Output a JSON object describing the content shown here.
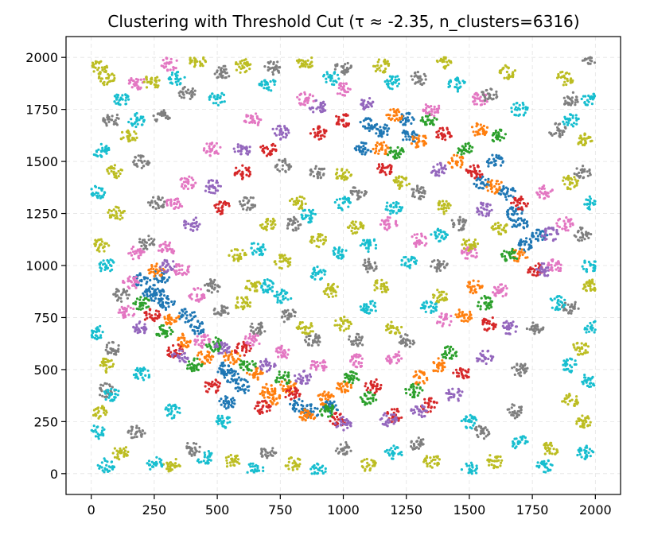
{
  "chart_data": {
    "type": "scatter",
    "title": "Clustering with Threshold Cut (τ ≈ -2.35, n_clusters=6316)",
    "xlabel": "",
    "ylabel": "",
    "xlim": [
      -100,
      2100
    ],
    "ylim": [
      -100,
      2100
    ],
    "x_ticks": [
      0,
      250,
      500,
      750,
      1000,
      1250,
      1500,
      1750,
      2000
    ],
    "y_ticks": [
      0,
      250,
      500,
      750,
      1000,
      1250,
      1500,
      1750,
      2000
    ],
    "x_tick_labels": [
      "0",
      "250",
      "500",
      "750",
      "1000",
      "1250",
      "1500",
      "1750",
      "2000"
    ],
    "y_tick_labels": [
      "0",
      "250",
      "500",
      "750",
      "1000",
      "1250",
      "1500",
      "1750",
      "2000"
    ],
    "grid": true,
    "marker_size": 1.6,
    "palette": [
      "#1f77b4",
      "#ff7f0e",
      "#2ca02c",
      "#d62728",
      "#9467bd",
      "#e377c2",
      "#7f7f7f",
      "#bcbd22",
      "#17becf"
    ],
    "series": [
      {
        "color": "#1f77b4",
        "points": [
          [
            230,
            880
          ],
          [
            260,
            860
          ],
          [
            300,
            820
          ],
          [
            200,
            930
          ],
          [
            280,
            950
          ],
          [
            520,
            500
          ],
          [
            560,
            470
          ],
          [
            600,
            420
          ],
          [
            540,
            340
          ],
          [
            820,
            330
          ],
          [
            870,
            300
          ],
          [
            950,
            320
          ],
          [
            1100,
            1680
          ],
          [
            1150,
            1650
          ],
          [
            1260,
            1620
          ],
          [
            1600,
            1500
          ],
          [
            1650,
            1350
          ],
          [
            1700,
            1200
          ],
          [
            1720,
            1100
          ],
          [
            1780,
            1150
          ],
          [
            1680,
            1250
          ],
          [
            1550,
            1400
          ],
          [
            1250,
            1700
          ],
          [
            1080,
            1560
          ],
          [
            420,
            700
          ],
          [
            380,
            760
          ]
        ]
      },
      {
        "color": "#ff7f0e",
        "points": [
          [
            320,
            740
          ],
          [
            370,
            640
          ],
          [
            450,
            560
          ],
          [
            650,
            480
          ],
          [
            700,
            400
          ],
          [
            780,
            420
          ],
          [
            860,
            280
          ],
          [
            1000,
            420
          ],
          [
            1150,
            1560
          ],
          [
            1300,
            1600
          ],
          [
            1450,
            1500
          ],
          [
            1540,
            1650
          ],
          [
            1600,
            1380
          ],
          [
            1520,
            900
          ],
          [
            1480,
            760
          ],
          [
            1380,
            520
          ],
          [
            1300,
            460
          ],
          [
            560,
            560
          ],
          [
            720,
            360
          ],
          [
            930,
            360
          ],
          [
            1200,
            1720
          ],
          [
            1700,
            1050
          ],
          [
            260,
            980
          ]
        ]
      },
      {
        "color": "#2ca02c",
        "points": [
          [
            290,
            680
          ],
          [
            410,
            520
          ],
          [
            620,
            520
          ],
          [
            760,
            460
          ],
          [
            940,
            300
          ],
          [
            1030,
            460
          ],
          [
            1210,
            1540
          ],
          [
            1340,
            1700
          ],
          [
            1480,
            1560
          ],
          [
            1620,
            1620
          ],
          [
            1660,
            1050
          ],
          [
            1560,
            820
          ],
          [
            1420,
            580
          ],
          [
            1280,
            400
          ],
          [
            490,
            620
          ],
          [
            200,
            820
          ],
          [
            1100,
            360
          ]
        ]
      },
      {
        "color": "#d62728",
        "points": [
          [
            240,
            760
          ],
          [
            330,
            590
          ],
          [
            480,
            420
          ],
          [
            600,
            600
          ],
          [
            680,
            320
          ],
          [
            800,
            380
          ],
          [
            980,
            260
          ],
          [
            1120,
            420
          ],
          [
            1170,
            1470
          ],
          [
            1400,
            1630
          ],
          [
            1520,
            1450
          ],
          [
            1700,
            1300
          ],
          [
            1760,
            980
          ],
          [
            1580,
            720
          ],
          [
            1470,
            480
          ],
          [
            1340,
            330
          ],
          [
            600,
            1450
          ],
          [
            520,
            1280
          ],
          [
            700,
            1560
          ],
          [
            900,
            1640
          ],
          [
            1000,
            1700
          ],
          [
            1200,
            280
          ]
        ]
      },
      {
        "color": "#9467bd",
        "points": [
          [
            200,
            700
          ],
          [
            350,
            560
          ],
          [
            520,
            600
          ],
          [
            700,
            520
          ],
          [
            840,
            460
          ],
          [
            1000,
            240
          ],
          [
            1180,
            260
          ],
          [
            1300,
            300
          ],
          [
            1440,
            380
          ],
          [
            1560,
            560
          ],
          [
            1660,
            700
          ],
          [
            1800,
            980
          ],
          [
            1820,
            1150
          ],
          [
            1560,
            1270
          ],
          [
            1380,
            1460
          ],
          [
            1100,
            1780
          ],
          [
            900,
            1760
          ],
          [
            750,
            1640
          ],
          [
            600,
            1560
          ],
          [
            480,
            1380
          ],
          [
            400,
            1200
          ],
          [
            300,
            1000
          ]
        ]
      },
      {
        "color": "#e377c2",
        "points": [
          [
            160,
            920
          ],
          [
            140,
            780
          ],
          [
            180,
            1060
          ],
          [
            300,
            1080
          ],
          [
            360,
            980
          ],
          [
            420,
            860
          ],
          [
            440,
            640
          ],
          [
            640,
            640
          ],
          [
            760,
            580
          ],
          [
            900,
            520
          ],
          [
            1050,
            540
          ],
          [
            1200,
            560
          ],
          [
            1400,
            740
          ],
          [
            1500,
            1060
          ],
          [
            1620,
            880
          ],
          [
            1840,
            1000
          ],
          [
            1880,
            1200
          ],
          [
            1800,
            1350
          ],
          [
            1350,
            1750
          ],
          [
            1000,
            1850
          ],
          [
            850,
            1800
          ],
          [
            640,
            1700
          ],
          [
            480,
            1560
          ],
          [
            380,
            1400
          ],
          [
            330,
            1300
          ],
          [
            1180,
            1200
          ],
          [
            1300,
            1120
          ],
          [
            180,
            1880
          ],
          [
            310,
            1970
          ],
          [
            1540,
            1800
          ]
        ]
      },
      {
        "color": "#7f7f7f",
        "points": [
          [
            120,
            860
          ],
          [
            220,
            1110
          ],
          [
            480,
            900
          ],
          [
            520,
            780
          ],
          [
            660,
            700
          ],
          [
            780,
            760
          ],
          [
            880,
            640
          ],
          [
            1050,
            640
          ],
          [
            1250,
            640
          ],
          [
            1380,
            1000
          ],
          [
            1460,
            1200
          ],
          [
            1300,
            1350
          ],
          [
            1060,
            1350
          ],
          [
            900,
            1450
          ],
          [
            760,
            1480
          ],
          [
            620,
            1300
          ],
          [
            260,
            1300
          ],
          [
            200,
            1500
          ],
          [
            80,
            1700
          ],
          [
            280,
            1720
          ],
          [
            380,
            1830
          ],
          [
            520,
            1930
          ],
          [
            720,
            1950
          ],
          [
            1000,
            1950
          ],
          [
            1300,
            1900
          ],
          [
            1580,
            1820
          ],
          [
            1850,
            1650
          ],
          [
            1950,
            1450
          ],
          [
            1950,
            1150
          ],
          [
            1900,
            800
          ],
          [
            1760,
            700
          ],
          [
            1700,
            500
          ],
          [
            1680,
            300
          ],
          [
            1550,
            200
          ],
          [
            1300,
            140
          ],
          [
            1000,
            120
          ],
          [
            700,
            100
          ],
          [
            400,
            120
          ],
          [
            180,
            200
          ],
          [
            60,
            400
          ],
          [
            80,
            600
          ],
          [
            1900,
            1800
          ],
          [
            1980,
            2000
          ],
          [
            800,
            1200
          ],
          [
            1100,
            1000
          ]
        ]
      },
      {
        "color": "#bcbd22",
        "points": [
          [
            30,
            300
          ],
          [
            60,
            520
          ],
          [
            40,
            1100
          ],
          [
            100,
            1250
          ],
          [
            90,
            1450
          ],
          [
            150,
            1620
          ],
          [
            60,
            1900
          ],
          [
            240,
            1880
          ],
          [
            420,
            1980
          ],
          [
            600,
            1960
          ],
          [
            850,
            1980
          ],
          [
            1150,
            1960
          ],
          [
            1400,
            1980
          ],
          [
            1650,
            1930
          ],
          [
            1880,
            1900
          ],
          [
            1960,
            1600
          ],
          [
            1900,
            1400
          ],
          [
            1980,
            900
          ],
          [
            1940,
            600
          ],
          [
            1900,
            350
          ],
          [
            1820,
            120
          ],
          [
            1600,
            60
          ],
          [
            1350,
            60
          ],
          [
            1100,
            40
          ],
          [
            800,
            50
          ],
          [
            560,
            60
          ],
          [
            320,
            40
          ],
          [
            120,
            100
          ],
          [
            640,
            900
          ],
          [
            760,
            1020
          ],
          [
            900,
            1120
          ],
          [
            1050,
            1180
          ],
          [
            1150,
            900
          ],
          [
            950,
            880
          ],
          [
            820,
            1300
          ],
          [
            1000,
            1440
          ],
          [
            1230,
            1400
          ],
          [
            1400,
            1280
          ],
          [
            1500,
            1100
          ],
          [
            1380,
            850
          ],
          [
            1200,
            700
          ],
          [
            1000,
            720
          ],
          [
            850,
            700
          ],
          [
            600,
            820
          ],
          [
            580,
            1050
          ],
          [
            700,
            1200
          ],
          [
            1620,
            1180
          ],
          [
            1950,
            250
          ],
          [
            30,
            1950
          ]
        ]
      },
      {
        "color": "#17becf",
        "points": [
          [
            20,
            200
          ],
          [
            80,
            380
          ],
          [
            20,
            680
          ],
          [
            60,
            1000
          ],
          [
            20,
            1350
          ],
          [
            40,
            1550
          ],
          [
            120,
            1800
          ],
          [
            180,
            1700
          ],
          [
            340,
            1900
          ],
          [
            500,
            1800
          ],
          [
            700,
            1870
          ],
          [
            950,
            1900
          ],
          [
            1200,
            1880
          ],
          [
            1450,
            1870
          ],
          [
            1700,
            1750
          ],
          [
            1900,
            1700
          ],
          [
            1980,
            1800
          ],
          [
            1990,
            1300
          ],
          [
            1980,
            1000
          ],
          [
            1990,
            700
          ],
          [
            1980,
            450
          ],
          [
            1960,
            100
          ],
          [
            1800,
            40
          ],
          [
            1500,
            20
          ],
          [
            1200,
            100
          ],
          [
            900,
            20
          ],
          [
            650,
            20
          ],
          [
            450,
            80
          ],
          [
            250,
            50
          ],
          [
            60,
            40
          ],
          [
            520,
            250
          ],
          [
            320,
            300
          ],
          [
            200,
            480
          ],
          [
            1500,
            250
          ],
          [
            1700,
            150
          ],
          [
            1900,
            520
          ],
          [
            1850,
            820
          ],
          [
            700,
            900
          ],
          [
            900,
            960
          ],
          [
            1100,
            1100
          ],
          [
            1260,
            1020
          ],
          [
            1340,
            800
          ],
          [
            1100,
            800
          ],
          [
            760,
            850
          ],
          [
            660,
            1080
          ],
          [
            860,
            1240
          ],
          [
            1000,
            1300
          ],
          [
            1380,
            1150
          ],
          [
            1200,
            1280
          ],
          [
            980,
            1060
          ]
        ]
      }
    ]
  }
}
